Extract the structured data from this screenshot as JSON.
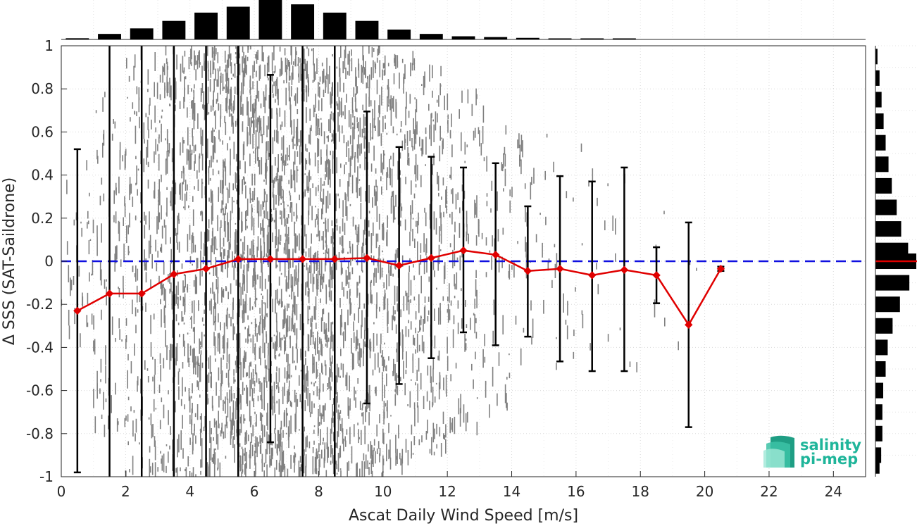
{
  "chart_data": {
    "type": "scatter",
    "xlabel": "Ascat Daily Wind Speed [m/s]",
    "ylabel": "Δ SSS (SAT-Saildrone)",
    "xlim": [
      0,
      25
    ],
    "ylim": [
      -1,
      1
    ],
    "xticks": [
      0,
      2,
      4,
      6,
      8,
      10,
      12,
      14,
      16,
      18,
      20,
      22,
      24
    ],
    "yticks": [
      -1,
      -0.8,
      -0.6,
      -0.4,
      -0.2,
      0,
      0.2,
      0.4,
      0.6,
      0.8,
      1
    ],
    "xtick_labels": [
      "0",
      "2",
      "4",
      "6",
      "8",
      "10",
      "12",
      "14",
      "16",
      "18",
      "20",
      "22",
      "24"
    ],
    "ytick_labels": [
      "-1",
      "-0.8",
      "-0.6",
      "-0.4",
      "-0.2",
      "0",
      "0.2",
      "0.4",
      "0.6",
      "0.8",
      "1"
    ],
    "grid": true,
    "reference_line": {
      "y": 0,
      "style": "dashed",
      "color": "#1010e0"
    },
    "scatter_color": "#808080",
    "scatter_density_by_bin": [
      {
        "x": 0.5,
        "density": 0.08,
        "y_spread": 0.45
      },
      {
        "x": 1.5,
        "density": 0.2,
        "y_spread": 0.8
      },
      {
        "x": 2.5,
        "density": 0.35,
        "y_spread": 1.0
      },
      {
        "x": 3.5,
        "density": 0.55,
        "y_spread": 1.0
      },
      {
        "x": 4.5,
        "density": 0.8,
        "y_spread": 1.0
      },
      {
        "x": 5.5,
        "density": 0.95,
        "y_spread": 1.0
      },
      {
        "x": 6.5,
        "density": 1.0,
        "y_spread": 1.0
      },
      {
        "x": 7.5,
        "density": 0.95,
        "y_spread": 1.0
      },
      {
        "x": 8.5,
        "density": 0.85,
        "y_spread": 1.0
      },
      {
        "x": 9.5,
        "density": 0.7,
        "y_spread": 1.0
      },
      {
        "x": 10.5,
        "density": 0.55,
        "y_spread": 0.95
      },
      {
        "x": 11.5,
        "density": 0.4,
        "y_spread": 0.9
      },
      {
        "x": 12.5,
        "density": 0.25,
        "y_spread": 0.8
      },
      {
        "x": 13.5,
        "density": 0.13,
        "y_spread": 0.7
      },
      {
        "x": 14.5,
        "density": 0.08,
        "y_spread": 0.6
      },
      {
        "x": 15.5,
        "density": 0.05,
        "y_spread": 0.6
      },
      {
        "x": 16.5,
        "density": 0.03,
        "y_spread": 0.55
      },
      {
        "x": 17.5,
        "density": 0.02,
        "y_spread": 0.5
      },
      {
        "x": 18.5,
        "density": 0.01,
        "y_spread": 0.4
      },
      {
        "x": 19.5,
        "density": 0.006,
        "y_spread": 0.4
      }
    ],
    "series": [
      {
        "name": "",
        "kind": "mean_with_errorbars",
        "color": "#e00000",
        "x": [
          0.5,
          1.5,
          2.5,
          3.5,
          4.5,
          5.5,
          6.5,
          7.5,
          8.5,
          9.5,
          10.5,
          11.5,
          12.5,
          13.5,
          14.5,
          15.5,
          16.5,
          17.5,
          18.5,
          19.5,
          20.5
        ],
        "y": [
          -0.23,
          -0.15,
          -0.15,
          -0.06,
          -0.035,
          0.01,
          0.01,
          0.01,
          0.01,
          0.015,
          -0.02,
          0.015,
          0.05,
          0.03,
          -0.045,
          -0.035,
          -0.065,
          -0.04,
          -0.065,
          -0.295,
          -0.035
        ],
        "y_low": [
          -0.98,
          -1.0,
          -1.0,
          -1.0,
          -1.0,
          -1.0,
          -0.84,
          -1.0,
          -1.0,
          -0.66,
          -0.57,
          -0.45,
          -0.33,
          -0.39,
          -0.35,
          -0.465,
          -0.51,
          -0.51,
          -0.195,
          -0.77,
          -0.045
        ],
        "y_high": [
          0.52,
          1.0,
          1.0,
          1.0,
          1.0,
          1.0,
          0.865,
          1.0,
          1.0,
          0.695,
          0.53,
          0.485,
          0.435,
          0.455,
          0.255,
          0.395,
          0.37,
          0.435,
          0.065,
          0.18,
          -0.025
        ]
      }
    ],
    "top_histogram": {
      "x_centers": [
        0.5,
        1.5,
        2.5,
        3.5,
        4.5,
        5.5,
        6.5,
        7.5,
        8.5,
        9.5,
        10.5,
        11.5,
        12.5,
        13.5,
        14.5,
        15.5,
        16.5,
        17.5
      ],
      "relative_counts": [
        0.03,
        0.14,
        0.28,
        0.47,
        0.68,
        0.83,
        1.0,
        0.89,
        0.68,
        0.47,
        0.25,
        0.14,
        0.08,
        0.06,
        0.04,
        0.02,
        0.015,
        0.005
      ]
    },
    "right_histogram": {
      "y_centers": [
        0.95,
        0.85,
        0.75,
        0.65,
        0.55,
        0.45,
        0.35,
        0.25,
        0.15,
        0.05,
        0.0,
        -0.1,
        -0.2,
        -0.3,
        -0.4,
        -0.5,
        -0.6,
        -0.7,
        -0.8,
        -0.9,
        -0.95
      ],
      "relative_counts": [
        0.05,
        0.1,
        0.15,
        0.2,
        0.25,
        0.32,
        0.4,
        0.52,
        0.63,
        0.8,
        1.0,
        0.83,
        0.6,
        0.42,
        0.3,
        0.25,
        0.19,
        0.17,
        0.17,
        0.14,
        0.1
      ],
      "mean_marker": {
        "y": 0,
        "color": "#e00000"
      }
    }
  },
  "logo": {
    "line1": "salinity",
    "line2": "pi-mep"
  }
}
